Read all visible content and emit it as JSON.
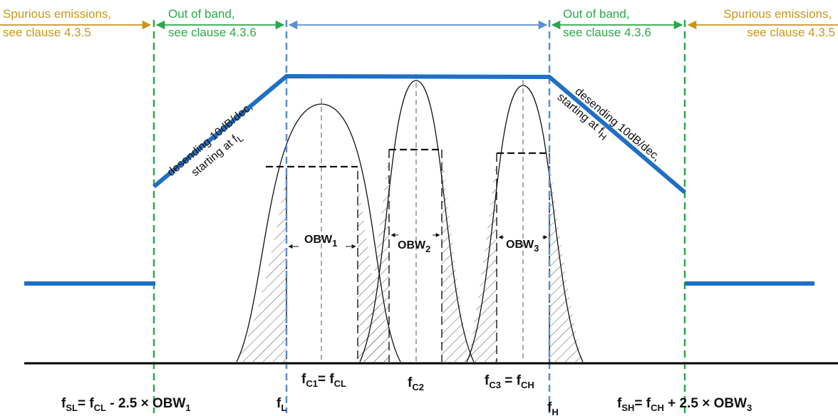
{
  "top_labels": {
    "spurious_left": {
      "line1": "Spurious emissions,",
      "line2": "see clause 4.3.5"
    },
    "oob_left": {
      "line1": "Out of band,",
      "line2": "see clause 4.3.6"
    },
    "oob_right": {
      "line1": "Out of band,",
      "line2": "see clause 4.3.6"
    },
    "spurious_right": {
      "line1": "Spurious emissions,",
      "line2": "see clause 4.3.5"
    }
  },
  "slope_labels": {
    "left": {
      "line1": "desending 10dB/dec,",
      "line2_prefix": "starting at f",
      "line2_sub": "L"
    },
    "right": {
      "line1": "desending 10dB/dec,",
      "line2_prefix": "starting at f",
      "line2_sub": "H"
    }
  },
  "obw_labels": [
    {
      "base": "OBW",
      "sub": "1"
    },
    {
      "base": "OBW",
      "sub": "2"
    },
    {
      "base": "OBW",
      "sub": "3"
    }
  ],
  "freq_labels": {
    "fsl": {
      "f": "f",
      "s1": "SL",
      "t1": "= f",
      "s2": "CL",
      "t2": " - 2.5 × OBW",
      "s3": "1"
    },
    "fl": {
      "f": "f",
      "s1": "L"
    },
    "fc1": {
      "f": "f",
      "s1": "C1",
      "t1": "= f",
      "s2": "CL"
    },
    "fc2": {
      "f": "f",
      "s1": "C2"
    },
    "fc3": {
      "f": "f",
      "s1": "C3",
      "t1": " = f",
      "s2": "CH"
    },
    "fh": {
      "f": "f",
      "s1": "H"
    },
    "fsh": {
      "f": "f",
      "s1": "SH",
      "t1": "= f",
      "s2": "CH",
      "t2": " + 2.5 × OBW",
      "s3": "3"
    }
  },
  "colors": {
    "mask": "#1f6fc4",
    "green": "#2aa84a",
    "blue_dash": "#5b8fd0",
    "orange": "#c8961e",
    "axis": "#000000"
  }
}
